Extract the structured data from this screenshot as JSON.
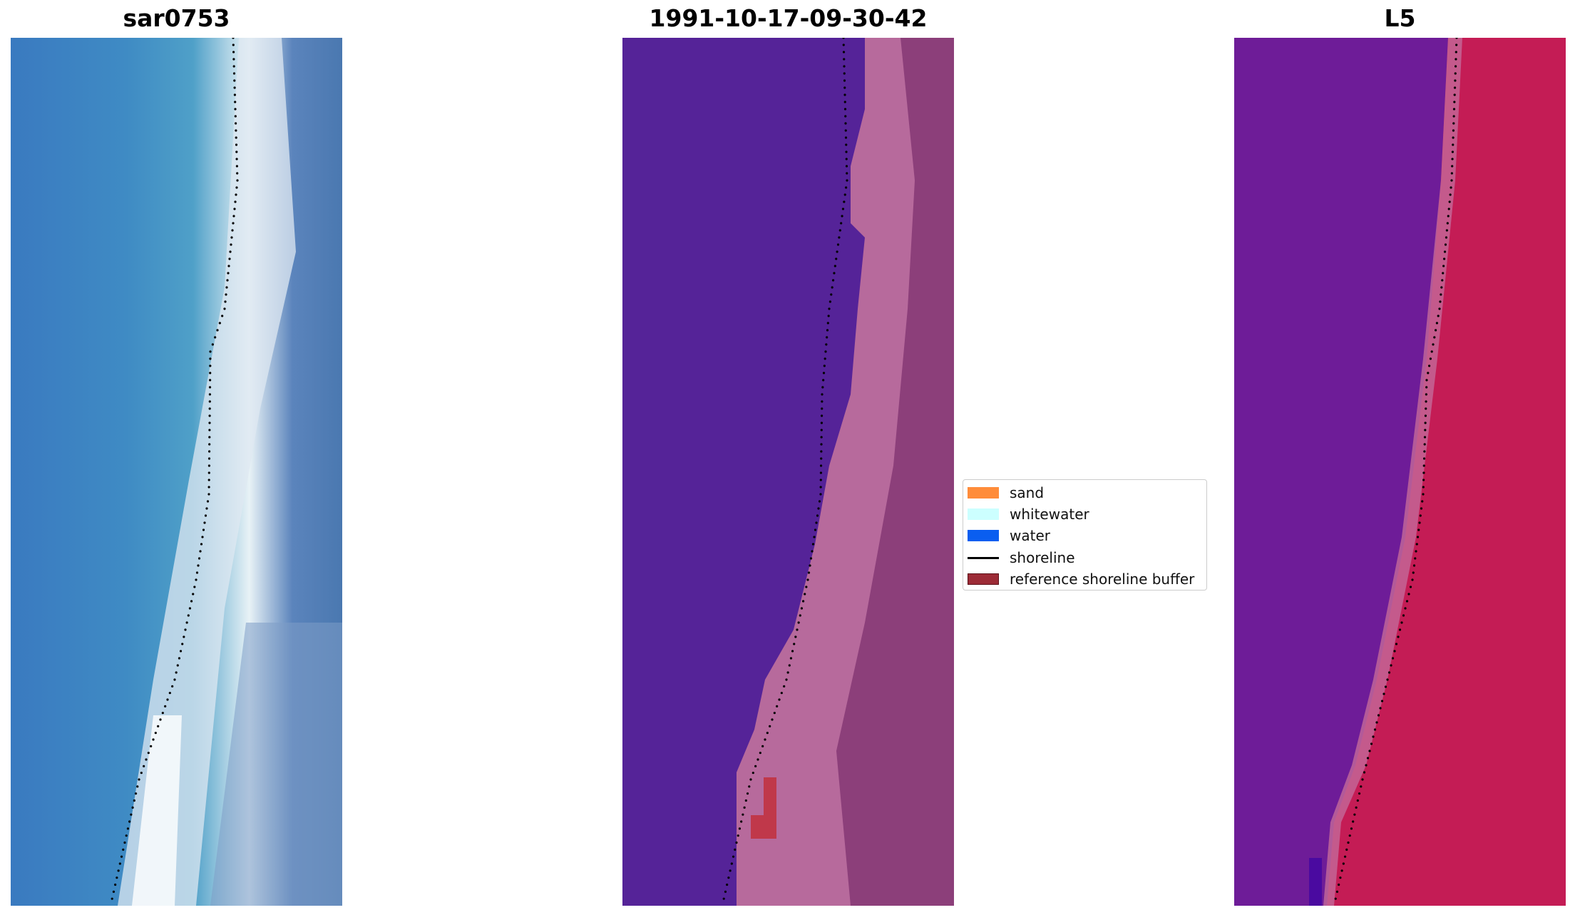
{
  "panels": [
    {
      "title": "sar0753"
    },
    {
      "title": "1991-10-17-09-30-42"
    },
    {
      "title": "L5"
    }
  ],
  "legend": {
    "items": [
      {
        "label": "sand",
        "color": "#ff8c3a",
        "kind": "patch"
      },
      {
        "label": "whitewater",
        "color": "#ccffff",
        "kind": "patch"
      },
      {
        "label": "water",
        "color": "#0a5ef0",
        "kind": "patch"
      },
      {
        "label": "shoreline",
        "color": "#000000",
        "kind": "line"
      },
      {
        "label": "reference shoreline buffer",
        "color": "#9c2b36",
        "kind": "patch"
      }
    ]
  }
}
